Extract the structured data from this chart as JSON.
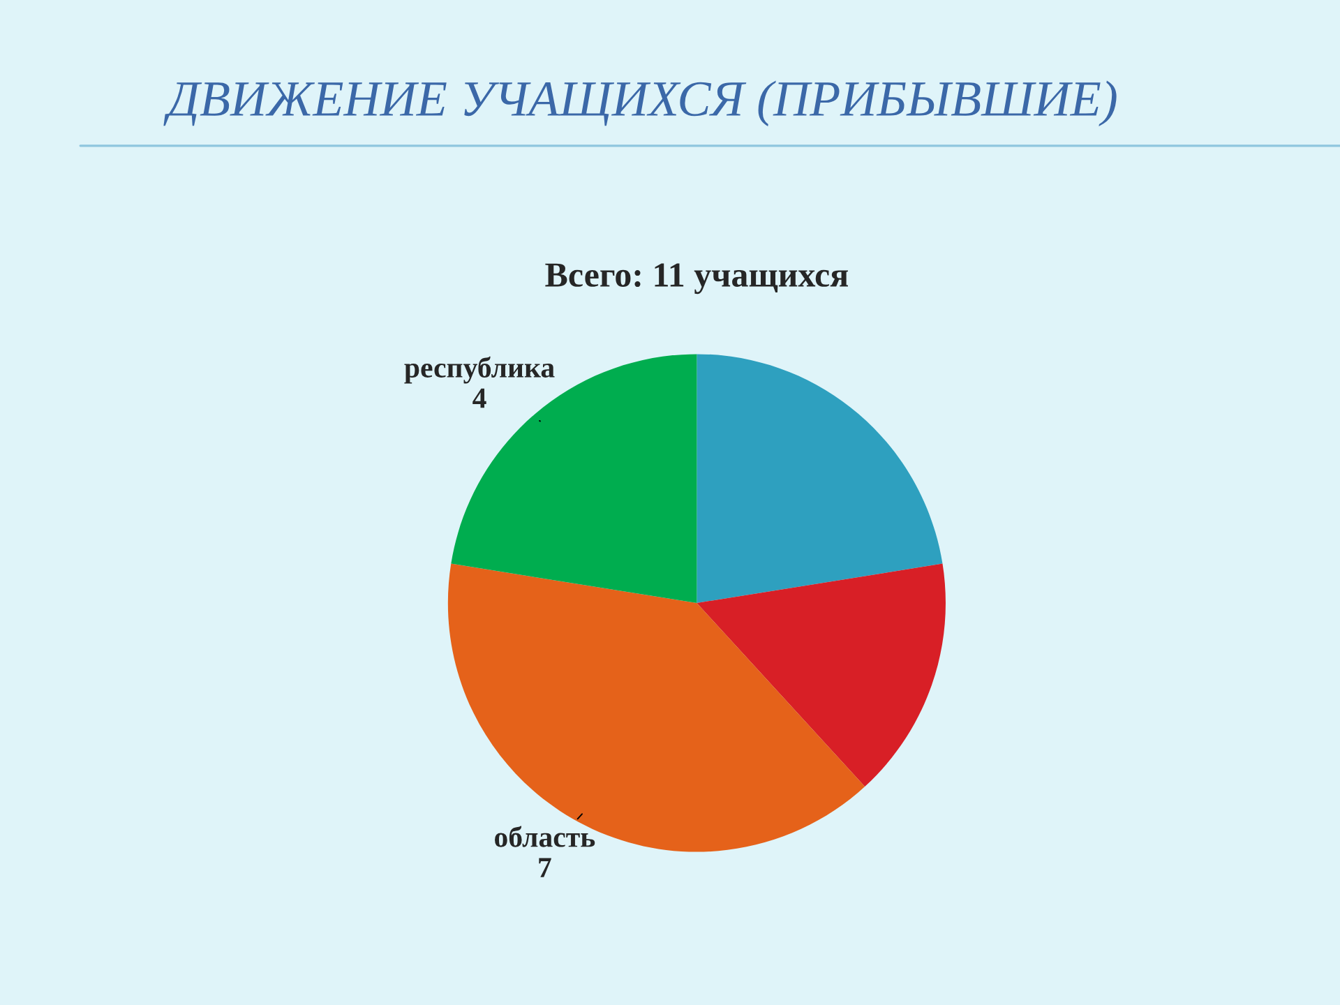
{
  "chart_data": {
    "type": "pie",
    "title": "ДВИЖЕНИЕ УЧАЩИХСЯ (ПРИБЫВШИЕ)",
    "subtitle": "Всего: 11 учащихся",
    "categories": [
      null,
      null,
      "область",
      "республика"
    ],
    "values": [
      4,
      2.8,
      7,
      4
    ],
    "value_labels": [
      null,
      null,
      "7",
      "4"
    ],
    "colors": [
      "#2ea0bf",
      "#d81f26",
      "#e5621a",
      "#00ad4f"
    ]
  }
}
